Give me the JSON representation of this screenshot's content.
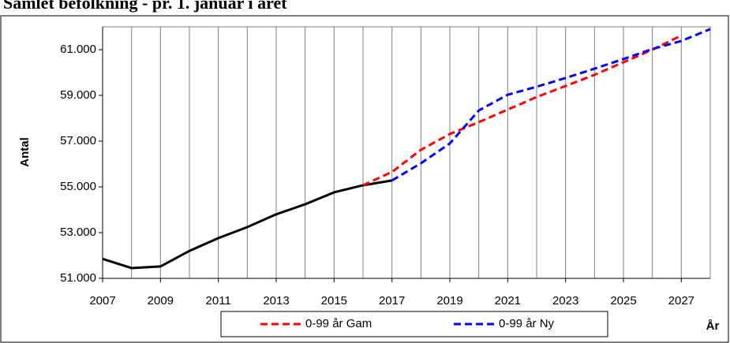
{
  "chart_data": {
    "type": "line",
    "title": "Samlet befolkning - pr. 1. januar i året",
    "y_label": "Antal",
    "x_label": "År",
    "x": [
      2007,
      2008,
      2009,
      2010,
      2011,
      2012,
      2013,
      2014,
      2015,
      2016,
      2017,
      2018,
      2019,
      2020,
      2021,
      2022,
      2023,
      2024,
      2025,
      2026,
      2027,
      2028
    ],
    "series": [
      {
        "color": "#000000",
        "dash": false,
        "values": [
          51850,
          51450,
          51520,
          52200,
          52760,
          53240,
          53800,
          54240,
          54760,
          55070,
          55280,
          null,
          null,
          null,
          null,
          null,
          null,
          null,
          null,
          null,
          null,
          null
        ]
      },
      {
        "name": "0-99 år Gam",
        "color": "#ff0000",
        "dash": true,
        "values": [
          null,
          null,
          null,
          null,
          null,
          null,
          null,
          null,
          null,
          55070,
          55650,
          56620,
          57310,
          57830,
          58380,
          58930,
          59410,
          59900,
          60450,
          61000,
          61620,
          null
        ]
      },
      {
        "name": "0-99 år Ny",
        "color": "#0000ff",
        "dash": true,
        "values": [
          null,
          null,
          null,
          null,
          null,
          null,
          null,
          null,
          null,
          null,
          55280,
          56030,
          56900,
          58340,
          59030,
          59380,
          59760,
          60170,
          60590,
          61030,
          61380,
          61900
        ]
      }
    ],
    "xlim": [
      2007,
      2028
    ],
    "xticks": [
      2007,
      2009,
      2011,
      2013,
      2015,
      2017,
      2019,
      2021,
      2023,
      2025,
      2027
    ],
    "ylim": [
      51000,
      62000
    ],
    "yticks": [
      {
        "value": 51000,
        "label": "51.000"
      },
      {
        "value": 53000,
        "label": "53.000"
      },
      {
        "value": 55000,
        "label": "55.000"
      },
      {
        "value": 57000,
        "label": "57.000"
      },
      {
        "value": 59000,
        "label": "59.000"
      },
      {
        "value": 61000,
        "label": "61.000"
      }
    ],
    "grid": true,
    "legend": "bottom"
  }
}
